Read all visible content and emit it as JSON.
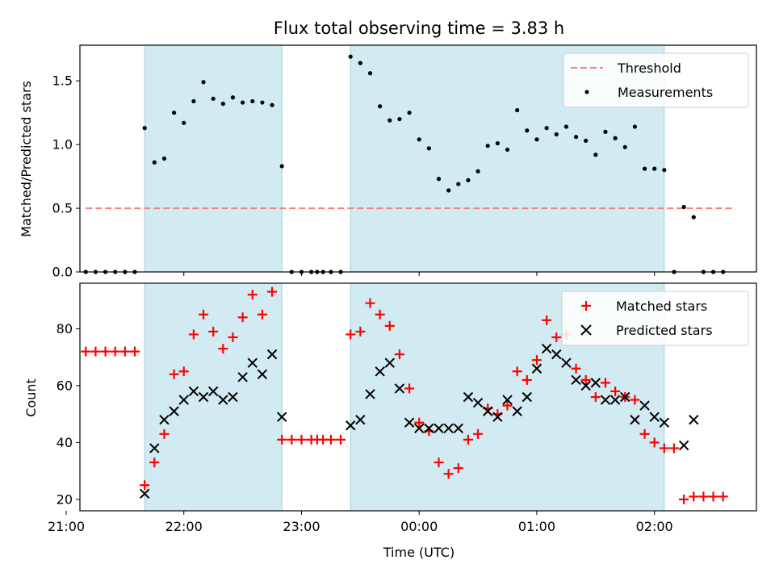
{
  "chart_data": {
    "type": "scatter",
    "title": "Flux total observing time = 3.83 h",
    "xlabel": "Time (UTC)",
    "xlim": [
      "21:07",
      "02:52"
    ],
    "x_ticks": [
      "21:00",
      "22:00",
      "23:00",
      "00:00",
      "01:00",
      "02:00"
    ],
    "x_ticks_times": [
      "21:00",
      "22:00",
      "23:00",
      "00:00",
      "01:00",
      "02:00"
    ],
    "shaded_intervals": [
      [
        "21:40",
        "22:50"
      ],
      [
        "23:25",
        "02:05"
      ]
    ],
    "shade_color": "#add8e6",
    "panels": [
      {
        "id": "ratio",
        "ylabel": "Matched/Predicted stars",
        "ylim": [
          0,
          1.78
        ],
        "y_ticks": [
          0.0,
          0.5,
          1.0,
          1.5
        ],
        "y_tick_labels": [
          "0.0",
          "0.5",
          "1.0",
          "1.5"
        ],
        "legend_position": "upper right",
        "threshold": {
          "name": "Threshold",
          "value": 0.5,
          "x_range": [
            "21:10",
            "02:40"
          ],
          "color": "#f08080",
          "style": "dashed"
        },
        "series": [
          {
            "name": "Measurements",
            "marker": "dot",
            "color": "#000000",
            "points": [
              [
                "21:10",
                0.0
              ],
              [
                "21:15",
                0.0
              ],
              [
                "21:20",
                0.0
              ],
              [
                "21:25",
                0.0
              ],
              [
                "21:30",
                0.0
              ],
              [
                "21:35",
                0.0
              ],
              [
                "21:40",
                1.13
              ],
              [
                "21:45",
                0.86
              ],
              [
                "21:50",
                0.89
              ],
              [
                "21:55",
                1.25
              ],
              [
                "22:00",
                1.17
              ],
              [
                "22:05",
                1.34
              ],
              [
                "22:10",
                1.49
              ],
              [
                "22:15",
                1.36
              ],
              [
                "22:20",
                1.32
              ],
              [
                "22:25",
                1.37
              ],
              [
                "22:30",
                1.33
              ],
              [
                "22:35",
                1.34
              ],
              [
                "22:40",
                1.33
              ],
              [
                "22:45",
                1.31
              ],
              [
                "22:50",
                0.83
              ],
              [
                "22:55",
                0.0
              ],
              [
                "23:00",
                0.0
              ],
              [
                "23:05",
                0.0
              ],
              [
                "23:08",
                0.0
              ],
              [
                "23:11",
                0.0
              ],
              [
                "23:15",
                0.0
              ],
              [
                "23:20",
                0.0
              ],
              [
                "23:25",
                1.69
              ],
              [
                "23:30",
                1.64
              ],
              [
                "23:35",
                1.56
              ],
              [
                "23:40",
                1.3
              ],
              [
                "23:45",
                1.19
              ],
              [
                "23:50",
                1.2
              ],
              [
                "23:55",
                1.25
              ],
              [
                "00:00",
                1.04
              ],
              [
                "00:05",
                0.97
              ],
              [
                "00:10",
                0.73
              ],
              [
                "00:15",
                0.64
              ],
              [
                "00:20",
                0.69
              ],
              [
                "00:25",
                0.72
              ],
              [
                "00:30",
                0.79
              ],
              [
                "00:35",
                0.99
              ],
              [
                "00:40",
                1.01
              ],
              [
                "00:45",
                0.96
              ],
              [
                "00:50",
                1.27
              ],
              [
                "00:55",
                1.11
              ],
              [
                "01:00",
                1.04
              ],
              [
                "01:05",
                1.13
              ],
              [
                "01:10",
                1.08
              ],
              [
                "01:15",
                1.14
              ],
              [
                "01:20",
                1.06
              ],
              [
                "01:25",
                1.03
              ],
              [
                "01:30",
                0.92
              ],
              [
                "01:35",
                1.1
              ],
              [
                "01:40",
                1.05
              ],
              [
                "01:45",
                0.98
              ],
              [
                "01:50",
                1.14
              ],
              [
                "01:55",
                0.81
              ],
              [
                "02:00",
                0.81
              ],
              [
                "02:05",
                0.8
              ],
              [
                "02:10",
                0.0
              ],
              [
                "02:15",
                0.51
              ],
              [
                "02:20",
                0.43
              ],
              [
                "02:25",
                0.0
              ],
              [
                "02:30",
                0.0
              ],
              [
                "02:35",
                0.0
              ]
            ]
          }
        ]
      },
      {
        "id": "counts",
        "ylabel": "Count",
        "ylim": [
          16,
          96
        ],
        "y_ticks": [
          20,
          40,
          60,
          80
        ],
        "y_tick_labels": [
          "20",
          "40",
          "60",
          "80"
        ],
        "legend_position": "upper right",
        "series": [
          {
            "name": "Matched stars",
            "marker": "plus",
            "color": "#ff0000",
            "points": [
              [
                "21:10",
                72
              ],
              [
                "21:15",
                72
              ],
              [
                "21:20",
                72
              ],
              [
                "21:25",
                72
              ],
              [
                "21:30",
                72
              ],
              [
                "21:35",
                72
              ],
              [
                "21:40",
                25
              ],
              [
                "21:45",
                33
              ],
              [
                "21:50",
                43
              ],
              [
                "21:55",
                64
              ],
              [
                "22:00",
                65
              ],
              [
                "22:05",
                78
              ],
              [
                "22:10",
                85
              ],
              [
                "22:15",
                79
              ],
              [
                "22:20",
                73
              ],
              [
                "22:25",
                77
              ],
              [
                "22:30",
                84
              ],
              [
                "22:35",
                92
              ],
              [
                "22:40",
                85
              ],
              [
                "22:45",
                93
              ],
              [
                "22:50",
                41
              ],
              [
                "22:55",
                41
              ],
              [
                "23:00",
                41
              ],
              [
                "23:05",
                41
              ],
              [
                "23:08",
                41
              ],
              [
                "23:11",
                41
              ],
              [
                "23:15",
                41
              ],
              [
                "23:20",
                41
              ],
              [
                "23:25",
                78
              ],
              [
                "23:30",
                79
              ],
              [
                "23:35",
                89
              ],
              [
                "23:40",
                85
              ],
              [
                "23:45",
                81
              ],
              [
                "23:50",
                71
              ],
              [
                "23:55",
                59
              ],
              [
                "00:00",
                47
              ],
              [
                "00:05",
                44
              ],
              [
                "00:10",
                33
              ],
              [
                "00:15",
                29
              ],
              [
                "00:20",
                31
              ],
              [
                "00:25",
                41
              ],
              [
                "00:30",
                43
              ],
              [
                "00:35",
                52
              ],
              [
                "00:40",
                50
              ],
              [
                "00:45",
                53
              ],
              [
                "00:50",
                65
              ],
              [
                "00:55",
                62
              ],
              [
                "01:00",
                69
              ],
              [
                "01:05",
                83
              ],
              [
                "01:10",
                77
              ],
              [
                "01:15",
                78
              ],
              [
                "01:20",
                66
              ],
              [
                "01:25",
                62
              ],
              [
                "01:30",
                56
              ],
              [
                "01:35",
                61
              ],
              [
                "01:40",
                58
              ],
              [
                "01:45",
                56
              ],
              [
                "01:50",
                55
              ],
              [
                "01:55",
                43
              ],
              [
                "02:00",
                40
              ],
              [
                "02:05",
                38
              ],
              [
                "02:10",
                38
              ],
              [
                "02:15",
                20
              ],
              [
                "02:20",
                21
              ],
              [
                "02:25",
                21
              ],
              [
                "02:30",
                21
              ],
              [
                "02:35",
                21
              ]
            ]
          },
          {
            "name": "Predicted stars",
            "marker": "x",
            "color": "#000000",
            "points": [
              [
                "21:40",
                22
              ],
              [
                "21:45",
                38
              ],
              [
                "21:50",
                48
              ],
              [
                "21:55",
                51
              ],
              [
                "22:00",
                55
              ],
              [
                "22:05",
                58
              ],
              [
                "22:10",
                56
              ],
              [
                "22:15",
                58
              ],
              [
                "22:20",
                55
              ],
              [
                "22:25",
                56
              ],
              [
                "22:30",
                63
              ],
              [
                "22:35",
                68
              ],
              [
                "22:40",
                64
              ],
              [
                "22:45",
                71
              ],
              [
                "22:50",
                49
              ],
              [
                "23:25",
                46
              ],
              [
                "23:30",
                48
              ],
              [
                "23:35",
                57
              ],
              [
                "23:40",
                65
              ],
              [
                "23:45",
                68
              ],
              [
                "23:50",
                59
              ],
              [
                "23:55",
                47
              ],
              [
                "00:00",
                45
              ],
              [
                "00:05",
                45
              ],
              [
                "00:10",
                45
              ],
              [
                "00:15",
                45
              ],
              [
                "00:20",
                45
              ],
              [
                "00:25",
                56
              ],
              [
                "00:30",
                54
              ],
              [
                "00:35",
                51
              ],
              [
                "00:40",
                49
              ],
              [
                "00:45",
                55
              ],
              [
                "00:50",
                51
              ],
              [
                "00:55",
                56
              ],
              [
                "01:00",
                66
              ],
              [
                "01:05",
                73
              ],
              [
                "01:10",
                71
              ],
              [
                "01:15",
                68
              ],
              [
                "01:20",
                62
              ],
              [
                "01:25",
                60
              ],
              [
                "01:30",
                61
              ],
              [
                "01:35",
                55
              ],
              [
                "01:40",
                55
              ],
              [
                "01:45",
                56
              ],
              [
                "01:50",
                48
              ],
              [
                "01:55",
                53
              ],
              [
                "02:00",
                49
              ],
              [
                "02:05",
                47
              ],
              [
                "02:15",
                39
              ],
              [
                "02:20",
                48
              ]
            ]
          }
        ]
      }
    ]
  }
}
